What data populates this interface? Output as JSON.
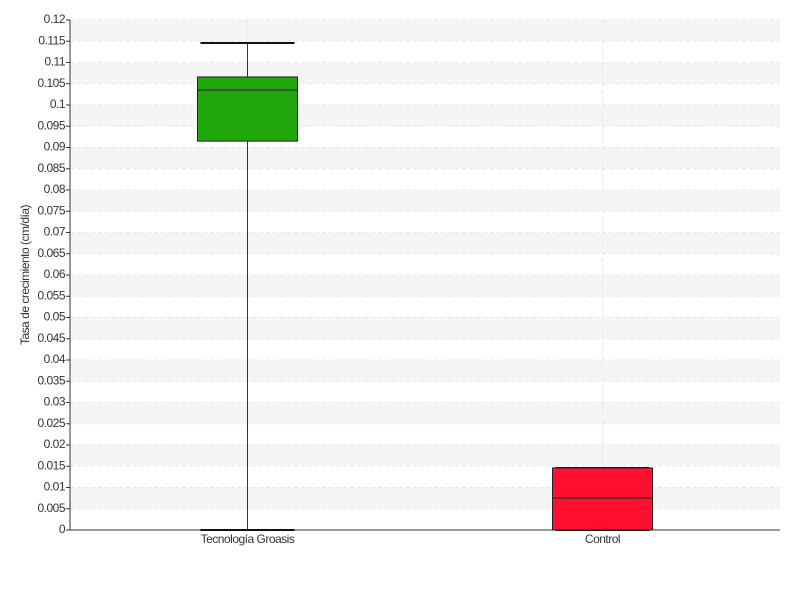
{
  "chart_data": {
    "type": "box",
    "y_label": "Tasa de crecimiento (cm/día)",
    "categories": [
      "Tecnología Groasis",
      "Control"
    ],
    "boxes": [
      {
        "min": 0,
        "q1": 0.0915,
        "median": 0.1035,
        "q3": 0.1066,
        "max": 0.1146,
        "color": "#22a60e"
      },
      {
        "min": 0,
        "q1": 0,
        "median": 0.0075,
        "q3": 0.0146,
        "max": 0.0146,
        "color": "#ff1030"
      }
    ],
    "ylim": [
      0,
      0.12
    ],
    "yticks": [
      0,
      0.005,
      0.01,
      0.015,
      0.02,
      0.025,
      0.03,
      0.035,
      0.04,
      0.045,
      0.05,
      0.055,
      0.06,
      0.065,
      0.07,
      0.075,
      0.08,
      0.085,
      0.09,
      0.095,
      0.1,
      0.105,
      0.11,
      0.115,
      0.12
    ],
    "grid": true
  }
}
